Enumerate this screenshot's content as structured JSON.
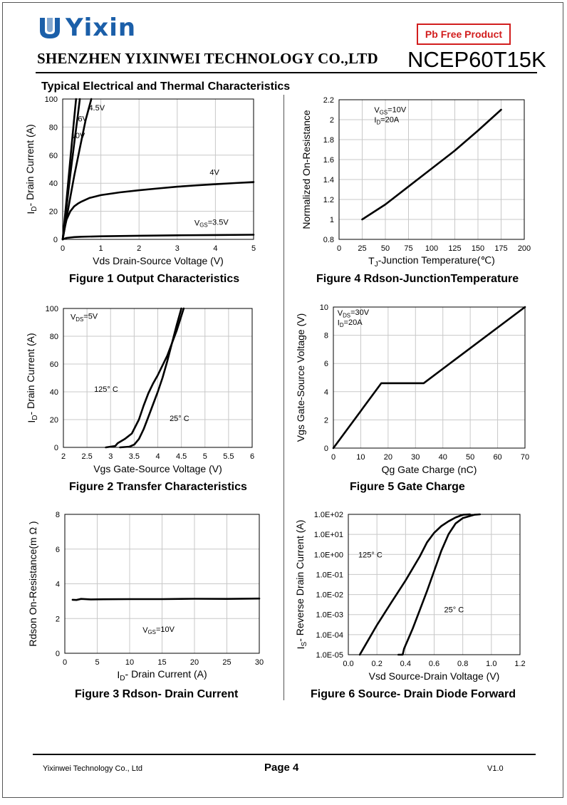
{
  "header": {
    "logo_text": "Yixin",
    "company": "SHENZHEN YIXINWEI TECHNOLOGY CO.,LTD",
    "badge": "Pb Free Product",
    "part_number": "NCEP60T15K",
    "brand_color": "#1b5fa9",
    "badge_color": "#d21e1e"
  },
  "section_title": "Typical Electrical and Thermal Characteristics",
  "footer": {
    "company": "Yixinwei Technology Co., Ltd",
    "page": "Page 4",
    "version": "V1.0"
  },
  "chart_data": [
    {
      "id": "fig1",
      "type": "line",
      "title": "Figure 1 Output Characteristics",
      "xlabel": "Vds Drain-Source Voltage (V)",
      "ylabel": "I<sub>D</sub>- Drain Current (A)",
      "xlim": [
        0,
        5
      ],
      "ylim": [
        0,
        100
      ],
      "xticks": [
        0,
        1,
        2,
        3,
        4,
        5
      ],
      "yticks": [
        0,
        20,
        40,
        60,
        80,
        100
      ],
      "xtick_labels": [
        "0",
        "1",
        "2",
        "3",
        "4",
        "5"
      ],
      "ytick_labels": [
        "0",
        "20",
        "40",
        "60",
        "80",
        "100"
      ],
      "series": [
        {
          "name": "10V",
          "x": [
            0,
            0.1,
            0.2,
            0.3,
            0.35
          ],
          "y": [
            0,
            28,
            57,
            86,
            100
          ]
        },
        {
          "name": "6V",
          "x": [
            0,
            0.1,
            0.2,
            0.3,
            0.4,
            0.45
          ],
          "y": [
            0,
            23,
            46,
            68,
            89,
            100
          ]
        },
        {
          "name": "4.5V",
          "x": [
            0,
            0.1,
            0.2,
            0.3,
            0.45,
            0.6,
            0.75
          ],
          "y": [
            0,
            15,
            30,
            45,
            65,
            85,
            100
          ]
        },
        {
          "name": "4V",
          "x": [
            0,
            0.05,
            0.1,
            0.2,
            0.3,
            0.4,
            0.5,
            0.7,
            1,
            1.5,
            2,
            2.5,
            3,
            3.5,
            4,
            4.5,
            5
          ],
          "y": [
            0,
            8,
            14,
            20,
            23.5,
            25.5,
            27,
            29.5,
            31.5,
            33.5,
            35,
            36.3,
            37.5,
            38.5,
            39.3,
            40.1,
            40.8
          ]
        },
        {
          "name": "V<sub>GS</sub>=3.5V",
          "x": [
            0,
            0.1,
            0.3,
            0.5,
            1,
            2,
            3,
            4,
            5
          ],
          "y": [
            0,
            1,
            1.6,
            1.9,
            2.2,
            2.6,
            2.9,
            3.1,
            3.3
          ]
        }
      ],
      "annotations": [
        {
          "text": "4.5V",
          "x": 0.68,
          "y": 92
        },
        {
          "text": "6V",
          "x": 0.4,
          "y": 84
        },
        {
          "text": "10V",
          "x": 0.22,
          "y": 72
        },
        {
          "text": "4V",
          "x": 3.85,
          "y": 46
        },
        {
          "text": "V<sub>GS</sub>=3.5V",
          "x": 3.45,
          "y": 10
        }
      ]
    },
    {
      "id": "fig4",
      "type": "line",
      "title": "Figure 4 Rdson-JunctionTemperature",
      "xlabel": "T<sub>J</sub>-Junction Temperature(℃)",
      "ylabel": "Normalized On-Resistance",
      "xlim": [
        0,
        200
      ],
      "ylim": [
        0.8,
        2.2
      ],
      "xticks": [
        0,
        25,
        50,
        75,
        100,
        125,
        150,
        175,
        200
      ],
      "yticks": [
        0.8,
        1,
        1.2,
        1.4,
        1.6,
        1.8,
        2,
        2.2
      ],
      "xtick_labels": [
        "0",
        "25",
        "50",
        "75",
        "100",
        "125",
        "150",
        "175",
        "200"
      ],
      "ytick_labels": [
        "0.8",
        "1",
        "1.2",
        "1.4",
        "1.6",
        "1.8",
        "2",
        "2.2"
      ],
      "series": [
        {
          "name": "Rdson",
          "x": [
            25,
            50,
            75,
            100,
            125,
            150,
            175
          ],
          "y": [
            1.0,
            1.15,
            1.33,
            1.51,
            1.69,
            1.89,
            2.1
          ]
        }
      ],
      "annotations": [
        {
          "text": "V<sub>GS</sub>=10V",
          "x": 38,
          "y": 2.07
        },
        {
          "text": "I<sub>D</sub>=20A",
          "x": 38,
          "y": 1.97
        }
      ]
    },
    {
      "id": "fig2",
      "type": "line",
      "title": "Figure 2 Transfer Characteristics",
      "xlabel": "Vgs Gate-Source Voltage (V)",
      "ylabel": "I<sub>D</sub>- Drain Current (A)",
      "xlim": [
        2,
        6
      ],
      "ylim": [
        0,
        100
      ],
      "xticks": [
        2,
        2.5,
        3,
        3.5,
        4,
        4.5,
        5,
        5.5,
        6
      ],
      "yticks": [
        0,
        20,
        40,
        60,
        80,
        100
      ],
      "xtick_labels": [
        "2",
        "2.5",
        "3",
        "3.5",
        "4",
        "4.5",
        "5",
        "5.5",
        "6"
      ],
      "ytick_labels": [
        "0",
        "20",
        "40",
        "60",
        "80",
        "100"
      ],
      "series": [
        {
          "name": "125° C",
          "x": [
            2.9,
            3.1,
            3.15,
            3.3,
            3.45,
            3.6,
            3.7,
            3.8,
            3.9,
            4.0,
            4.2,
            4.4,
            4.55
          ],
          "y": [
            0,
            1,
            3,
            6,
            10,
            20,
            30,
            39,
            46,
            52,
            66,
            84,
            100
          ]
        },
        {
          "name": "25° C",
          "x": [
            3.2,
            3.4,
            3.5,
            3.6,
            3.7,
            3.8,
            3.9,
            4.0,
            4.1,
            4.2,
            4.3,
            4.4,
            4.5
          ],
          "y": [
            0,
            0.5,
            2,
            6,
            13,
            22,
            31,
            40,
            50,
            62,
            75,
            88,
            100
          ]
        }
      ],
      "annotations": [
        {
          "text": "V<sub>DS</sub>=5V",
          "x": 2.15,
          "y": 92
        },
        {
          "text": "125° C",
          "x": 2.65,
          "y": 40
        },
        {
          "text": "25° C",
          "x": 4.25,
          "y": 19
        }
      ]
    },
    {
      "id": "fig5",
      "type": "line",
      "title": "Figure 5 Gate Charge",
      "xlabel": "Qg Gate Charge (nC)",
      "ylabel": "Vgs Gate-Source Voltage (V)",
      "xlim": [
        0,
        70
      ],
      "ylim": [
        0,
        10
      ],
      "xticks": [
        0,
        10,
        20,
        30,
        40,
        50,
        60,
        70
      ],
      "yticks": [
        0,
        2,
        4,
        6,
        8,
        10
      ],
      "xtick_labels": [
        "0",
        "10",
        "20",
        "30",
        "40",
        "50",
        "60",
        "70"
      ],
      "ytick_labels": [
        "0",
        "2",
        "4",
        "6",
        "8",
        "10"
      ],
      "series": [
        {
          "name": "Vgs",
          "x": [
            0,
            17.5,
            33,
            70
          ],
          "y": [
            0,
            4.6,
            4.6,
            10
          ]
        }
      ],
      "annotations": [
        {
          "text": "V<sub>DS</sub>=30V",
          "x": 1.5,
          "y": 9.4
        },
        {
          "text": "I<sub>D</sub>=20A",
          "x": 1.5,
          "y": 8.7
        }
      ]
    },
    {
      "id": "fig3",
      "type": "line",
      "title": "Figure 3 Rdson- Drain Current",
      "xlabel": "I<sub>D</sub>- Drain Current (A)",
      "ylabel": "Rdson On-Resistance(m Ω )",
      "xlim": [
        0,
        30
      ],
      "ylim": [
        0,
        8
      ],
      "xticks": [
        0,
        5,
        10,
        15,
        20,
        25,
        30
      ],
      "yticks": [
        0,
        2,
        4,
        6,
        8
      ],
      "xtick_labels": [
        "0",
        "5",
        "10",
        "15",
        "20",
        "25",
        "30"
      ],
      "ytick_labels": [
        "0",
        "2",
        "4",
        "6",
        "8"
      ],
      "series": [
        {
          "name": "Rdson",
          "x": [
            1.2,
            1.8,
            2.5,
            4,
            6,
            10,
            15,
            20,
            25,
            30
          ],
          "y": [
            3.08,
            3.07,
            3.13,
            3.1,
            3.11,
            3.12,
            3.12,
            3.14,
            3.13,
            3.15
          ]
        }
      ],
      "annotations": [
        {
          "text": "V<sub>GS</sub>=10V",
          "x": 12,
          "y": 1.2
        }
      ]
    },
    {
      "id": "fig6",
      "type": "line",
      "yscale": "log",
      "title": "Figure 6 Source- Drain Diode Forward",
      "xlabel": "Vsd Source-Drain Voltage (V)",
      "ylabel": "I<sub>S</sub>- Reverse Drain Current (A)",
      "xlim": [
        0,
        1.2
      ],
      "ylim": [
        1e-05,
        100
      ],
      "xticks": [
        0,
        0.2,
        0.4,
        0.6,
        0.8,
        1.0,
        1.2
      ],
      "yticks": [
        1e-05,
        0.0001,
        0.001,
        0.01,
        0.1,
        1,
        10,
        100
      ],
      "xtick_labels": [
        "0.0",
        "0.2",
        "0.4",
        "0.6",
        "0.8",
        "1.0",
        "1.2"
      ],
      "ytick_labels": [
        "1.0E-05",
        "1.0E-04",
        "1.0E-03",
        "1.0E-02",
        "1.0E-01",
        "1.0E+00",
        "1.0E+01",
        "1.0E+02"
      ],
      "series": [
        {
          "name": "125° C",
          "x": [
            0.08,
            0.2,
            0.3,
            0.4,
            0.5,
            0.55,
            0.6,
            0.65,
            0.7,
            0.75,
            0.8,
            0.85
          ],
          "y": [
            1e-05,
            0.0003,
            0.004,
            0.05,
            0.8,
            4,
            12,
            26,
            45,
            70,
            95,
            100
          ]
        },
        {
          "name": "25° C",
          "x": [
            0.35,
            0.38,
            0.39,
            0.45,
            0.5,
            0.55,
            0.6,
            0.65,
            0.7,
            0.75,
            0.8,
            0.88,
            0.92
          ],
          "y": [
            1e-05,
            1e-05,
            2e-05,
            0.0002,
            0.0017,
            0.015,
            0.15,
            1.5,
            10,
            35,
            65,
            95,
            100
          ]
        }
      ],
      "annotations": [
        {
          "text": "125° C",
          "x": 0.07,
          "y": 0.7
        },
        {
          "text": "25° C",
          "x": 0.67,
          "y": 0.0013
        }
      ]
    }
  ]
}
